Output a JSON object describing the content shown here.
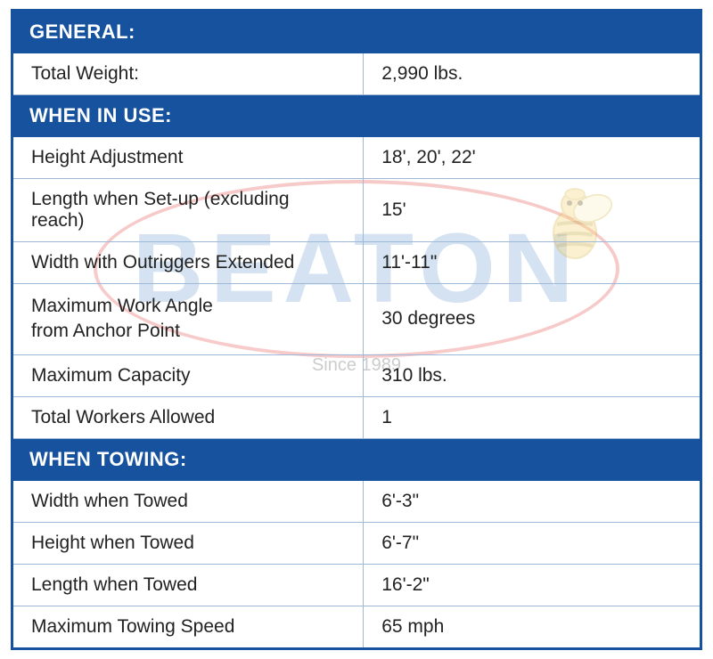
{
  "brand": {
    "watermark_text": "BEATON",
    "since_text": "Since 1989",
    "oval_border_color": "#F3A8A8",
    "text_color": "#B9CFE8"
  },
  "style": {
    "header_bg": "#16529E",
    "header_fg": "#ffffff",
    "cell_border": "#9EB9D8",
    "outer_border": "#16529E",
    "font_family": "Arial, Helvetica, sans-serif",
    "header_fontsize": 22,
    "cell_fontsize": 21
  },
  "sections": {
    "general": {
      "title": "GENERAL:",
      "rows": [
        {
          "label": "Total Weight:",
          "value": "2,990 lbs."
        }
      ]
    },
    "in_use": {
      "title": "WHEN IN USE:",
      "rows": [
        {
          "label": "Height Adjustment",
          "value": "18', 20', 22'"
        },
        {
          "label": "Length when Set-up (excluding reach)",
          "value": "15'"
        },
        {
          "label": "Width with Outriggers Extended",
          "value": "11'-11\""
        },
        {
          "label": "Maximum Work Angle\nfrom Anchor Point",
          "value": "30 degrees"
        },
        {
          "label": "Maximum Capacity",
          "value": "310 lbs."
        },
        {
          "label": "Total Workers Allowed",
          "value": "1"
        }
      ]
    },
    "towing": {
      "title": "WHEN TOWING:",
      "rows": [
        {
          "label": "Width when Towed",
          "value": "6'-3\""
        },
        {
          "label": "Height when Towed",
          "value": "6'-7\""
        },
        {
          "label": "Length when Towed",
          "value": "16'-2\""
        },
        {
          "label": "Maximum Towing Speed",
          "value": "65 mph"
        }
      ]
    }
  }
}
